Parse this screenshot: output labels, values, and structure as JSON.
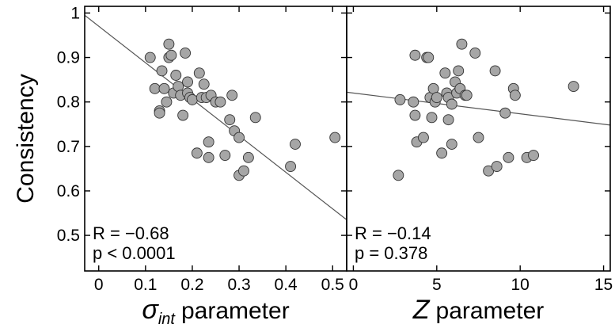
{
  "chart_data": [
    {
      "type": "scatter",
      "ylabel": "Consistency",
      "xlabel_symbol": "σ",
      "xlabel_subscript": "int",
      "xlabel_rest": "parameter",
      "xlim": [
        -0.03,
        0.53
      ],
      "ylim": [
        0.42,
        1.015
      ],
      "xticks": [
        "0",
        "0.1",
        "0.2",
        "0.3",
        "0.4",
        "0.5"
      ],
      "xtick_values": [
        0,
        0.1,
        0.2,
        0.3,
        0.4,
        0.5
      ],
      "yticks": [
        "0.5",
        "0.6",
        "0.7",
        "0.8",
        "0.9",
        "1"
      ],
      "ytick_values": [
        0.5,
        0.6,
        0.7,
        0.8,
        0.9,
        1.0
      ],
      "annotations": [
        "R = −0.68",
        "p < 0.0001"
      ],
      "fit_line": [
        [
          -0.03,
          0.995
        ],
        [
          0.53,
          0.535
        ]
      ],
      "points": [
        [
          0.11,
          0.9
        ],
        [
          0.12,
          0.83
        ],
        [
          0.13,
          0.78
        ],
        [
          0.13,
          0.775
        ],
        [
          0.135,
          0.87
        ],
        [
          0.14,
          0.83
        ],
        [
          0.145,
          0.8
        ],
        [
          0.15,
          0.93
        ],
        [
          0.15,
          0.9
        ],
        [
          0.155,
          0.905
        ],
        [
          0.16,
          0.82
        ],
        [
          0.165,
          0.86
        ],
        [
          0.17,
          0.835
        ],
        [
          0.175,
          0.815
        ],
        [
          0.18,
          0.77
        ],
        [
          0.185,
          0.91
        ],
        [
          0.19,
          0.845
        ],
        [
          0.19,
          0.82
        ],
        [
          0.195,
          0.81
        ],
        [
          0.2,
          0.805
        ],
        [
          0.21,
          0.685
        ],
        [
          0.215,
          0.865
        ],
        [
          0.22,
          0.81
        ],
        [
          0.225,
          0.84
        ],
        [
          0.23,
          0.81
        ],
        [
          0.235,
          0.675
        ],
        [
          0.235,
          0.71
        ],
        [
          0.24,
          0.815
        ],
        [
          0.25,
          0.8
        ],
        [
          0.26,
          0.8
        ],
        [
          0.27,
          0.68
        ],
        [
          0.28,
          0.76
        ],
        [
          0.285,
          0.815
        ],
        [
          0.29,
          0.735
        ],
        [
          0.3,
          0.72
        ],
        [
          0.3,
          0.635
        ],
        [
          0.31,
          0.645
        ],
        [
          0.32,
          0.675
        ],
        [
          0.335,
          0.765
        ],
        [
          0.41,
          0.655
        ],
        [
          0.42,
          0.705
        ],
        [
          0.505,
          0.72
        ]
      ]
    },
    {
      "type": "scatter",
      "xlabel_symbol": "Z",
      "xlabel_rest": "parameter",
      "xlim": [
        -0.4,
        15.4
      ],
      "ylim": [
        0.42,
        1.015
      ],
      "xticks": [
        "0",
        "5",
        "10",
        "15"
      ],
      "xtick_values": [
        0,
        5,
        10,
        15
      ],
      "annotations": [
        "R = −0.14",
        "p = 0.378"
      ],
      "fit_line": [
        [
          -0.4,
          0.822
        ],
        [
          15.4,
          0.748
        ]
      ],
      "points": [
        [
          2.7,
          0.635
        ],
        [
          2.8,
          0.805
        ],
        [
          3.6,
          0.8
        ],
        [
          3.7,
          0.905
        ],
        [
          3.7,
          0.77
        ],
        [
          3.8,
          0.71
        ],
        [
          4.2,
          0.72
        ],
        [
          4.4,
          0.9
        ],
        [
          4.5,
          0.9
        ],
        [
          4.6,
          0.81
        ],
        [
          4.7,
          0.765
        ],
        [
          4.8,
          0.83
        ],
        [
          4.9,
          0.8
        ],
        [
          5.0,
          0.81
        ],
        [
          5.3,
          0.685
        ],
        [
          5.5,
          0.865
        ],
        [
          5.6,
          0.82
        ],
        [
          5.7,
          0.81
        ],
        [
          5.7,
          0.76
        ],
        [
          5.9,
          0.795
        ],
        [
          5.9,
          0.705
        ],
        [
          6.1,
          0.845
        ],
        [
          6.2,
          0.82
        ],
        [
          6.3,
          0.87
        ],
        [
          6.4,
          0.83
        ],
        [
          6.5,
          0.93
        ],
        [
          6.7,
          0.815
        ],
        [
          6.8,
          0.815
        ],
        [
          7.3,
          0.91
        ],
        [
          7.5,
          0.72
        ],
        [
          8.1,
          0.645
        ],
        [
          8.5,
          0.87
        ],
        [
          8.6,
          0.655
        ],
        [
          9.1,
          0.775
        ],
        [
          9.3,
          0.675
        ],
        [
          9.6,
          0.83
        ],
        [
          9.7,
          0.815
        ],
        [
          10.4,
          0.675
        ],
        [
          10.8,
          0.68
        ],
        [
          13.2,
          0.835
        ]
      ]
    }
  ]
}
